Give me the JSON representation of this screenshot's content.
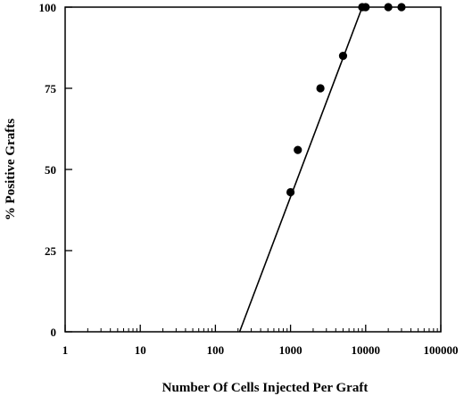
{
  "chart_data": {
    "type": "scatter",
    "title": "",
    "xlabel": "Number Of Cells Injected Per Graft",
    "ylabel": "% Positive Grafts",
    "xscale": "log",
    "xlim": [
      1,
      100000
    ],
    "ylim": [
      0,
      100
    ],
    "x_ticks": [
      1,
      10,
      100,
      1000,
      10000,
      100000
    ],
    "x_tick_labels": [
      "1",
      "10",
      "100",
      "1000",
      "10000",
      "100000"
    ],
    "y_ticks": [
      0,
      25,
      50,
      75,
      100
    ],
    "y_tick_labels": [
      "0",
      "25",
      "50",
      "75",
      "100"
    ],
    "grid": false,
    "legend": "none",
    "series": [
      {
        "x": [
          1000,
          1250,
          2500,
          5000,
          9000,
          10000,
          20000,
          30000
        ],
        "y": [
          43,
          56,
          75,
          85,
          100,
          100,
          100,
          100
        ]
      }
    ],
    "fit_line": {
      "points": [
        [
          210,
          0
        ],
        [
          9000,
          100
        ]
      ]
    },
    "colors": {
      "marker": "#000000",
      "line": "#000000",
      "background": "#ffffff"
    }
  }
}
